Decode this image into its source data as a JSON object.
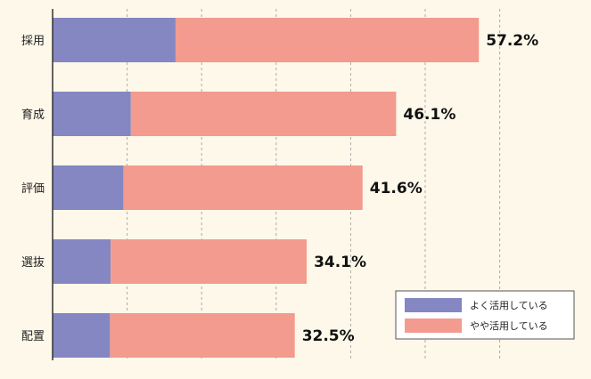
{
  "chart_data": {
    "type": "bar",
    "orientation": "horizontal",
    "stacked": true,
    "categories": [
      "採用",
      "育成",
      "評価",
      "選抜",
      "配置"
    ],
    "series": [
      {
        "name": "よく活用している",
        "values": [
          16.5,
          10.5,
          9.5,
          7.8,
          7.7
        ],
        "color": "#8487c2"
      },
      {
        "name": "やや活用している",
        "values": [
          40.7,
          35.6,
          32.1,
          26.3,
          24.8
        ],
        "color": "#f29b8e"
      }
    ],
    "totals": [
      57.2,
      46.1,
      41.6,
      34.1,
      32.5
    ],
    "total_labels": [
      "57.2%",
      "46.1%",
      "41.6%",
      "34.1%",
      "32.5%"
    ],
    "xlim": [
      0,
      70
    ],
    "grid": {
      "x": true,
      "style": "dashed",
      "step": 10
    },
    "legend_position": "bottom-right",
    "title": "",
    "xlabel": "",
    "ylabel": ""
  },
  "colors": {
    "background": "#fdf8e9",
    "grid": "#aaaaaa",
    "axis": "#333333"
  }
}
